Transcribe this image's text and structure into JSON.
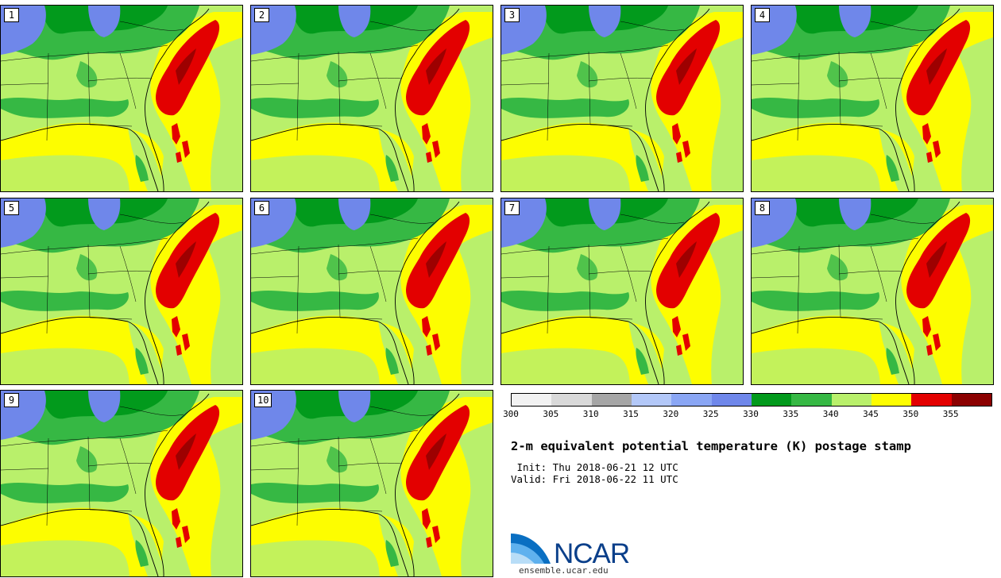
{
  "panels": [
    {
      "label": "1"
    },
    {
      "label": "2"
    },
    {
      "label": "3"
    },
    {
      "label": "4"
    },
    {
      "label": "5"
    },
    {
      "label": "6"
    },
    {
      "label": "7"
    },
    {
      "label": "8"
    },
    {
      "label": "9"
    },
    {
      "label": "10"
    }
  ],
  "colorbar": {
    "ticks": [
      "300",
      "305",
      "310",
      "315",
      "320",
      "325",
      "330",
      "335",
      "340",
      "345",
      "350",
      "355"
    ],
    "colors": [
      "#f2f2f2",
      "#d9d9d9",
      "#a6a6a6",
      "#b3c8f8",
      "#8aa6f4",
      "#6f87ea",
      "#029a1c",
      "#36b844",
      "#b9f06b",
      "#fdfd00",
      "#e30000",
      "#8b0000"
    ]
  },
  "title": "2-m equivalent potential temperature (K) postage stamp",
  "init": " Init: Thu 2018-06-21 12 UTC",
  "valid": "Valid: Fri 2018-06-22 11 UTC",
  "logo": {
    "text": "NCAR",
    "url": "ensemble.ucar.edu"
  },
  "colors": {
    "ocean": "#b9f06b",
    "land": "#b9f06b",
    "yellow": "#fdfd00",
    "red": "#e30000",
    "darkred": "#8b0000",
    "green": "#36b844",
    "darkgreen": "#029a1c",
    "blue": "#6f87ea"
  }
}
